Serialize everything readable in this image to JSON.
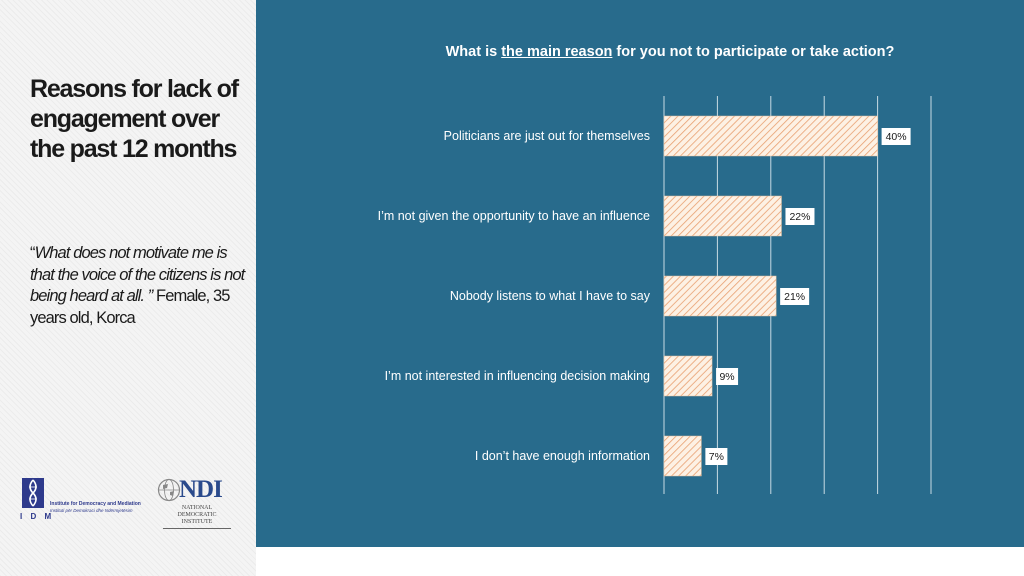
{
  "sidebar": {
    "title": "Reasons for lack of engagement over the past 12 months",
    "quote_open": "“",
    "quote_italic": "What does not motivate me is that the voice of the citizens is not being heard at all. ”",
    "quote_attribution": " Female, 35 years old, Korca"
  },
  "logos": {
    "idm_letters": "I D M",
    "idm_name": "Institute for Democracy and Mediation",
    "idm_name_al": "Instituti për Demokraci dhe Ndërmjetësim",
    "ndi_word": "NDI",
    "ndi_sub": "NATIONAL DEMOCRATIC INSTITUTE"
  },
  "chart_data": {
    "type": "bar",
    "orientation": "horizontal",
    "title_before": "What is ",
    "title_underlined": "the main reason",
    "title_after": " for you not to participate or take  action?",
    "categories": [
      "Politicians are just out for themselves",
      "I’m not given the opportunity to have an influence",
      "Nobody listens to what I have to say",
      "I’m not interested in influencing decision making",
      "I don’t have enough information"
    ],
    "values": [
      40,
      22,
      21,
      9,
      7
    ],
    "value_labels": [
      "40%",
      "22%",
      "21%",
      "9%",
      "7%"
    ],
    "xlim": [
      0,
      50
    ],
    "grid": true,
    "colors": {
      "background": "#286b8c",
      "bar_fill": "#fdf1e4",
      "bar_hatch": "#e8a070",
      "grid": "#c9dbe4",
      "label_box": "#ffffff"
    }
  }
}
